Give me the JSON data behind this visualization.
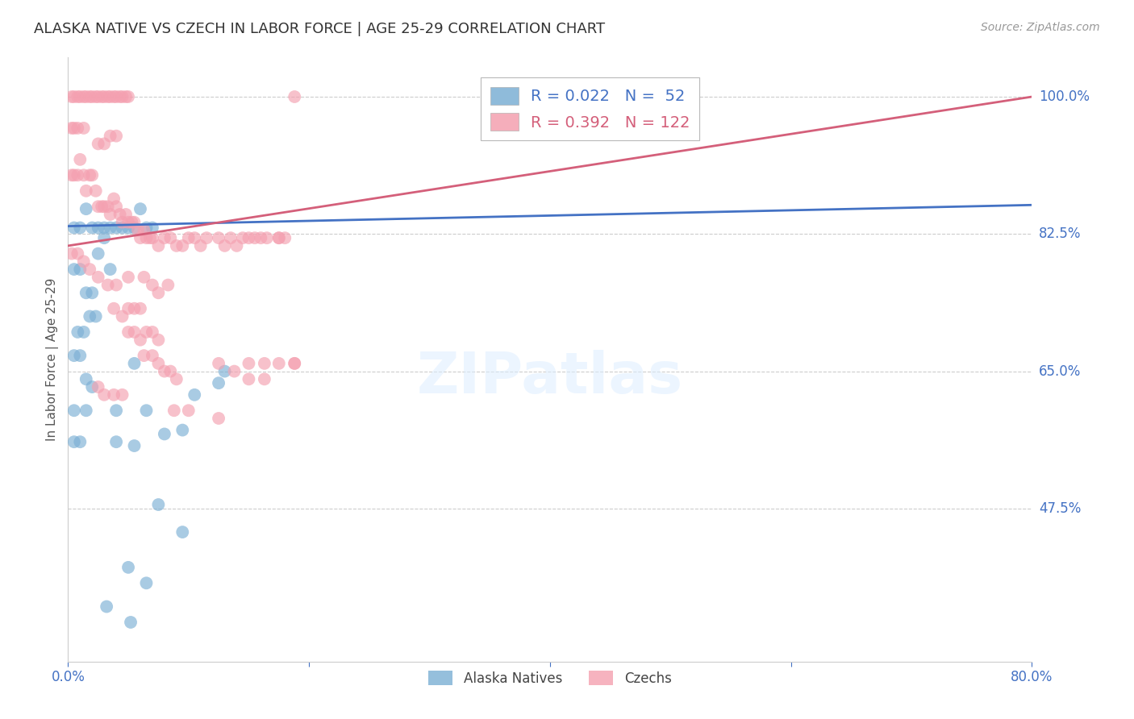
{
  "title": "ALASKA NATIVE VS CZECH IN LABOR FORCE | AGE 25-29 CORRELATION CHART",
  "source": "Source: ZipAtlas.com",
  "ylabel": "In Labor Force | Age 25-29",
  "legend_blue_r": "0.022",
  "legend_blue_n": "52",
  "legend_pink_r": "0.392",
  "legend_pink_n": "122",
  "legend_label_blue": "Alaska Natives",
  "legend_label_pink": "Czechs",
  "blue_color": "#7bafd4",
  "pink_color": "#f4a0b0",
  "blue_line_color": "#4472c4",
  "pink_line_color": "#d45f7a",
  "title_color": "#333333",
  "axis_label_color": "#4472c4",
  "background_color": "#ffffff",
  "blue_scatter": [
    [
      0.5,
      83.3
    ],
    [
      1.0,
      83.3
    ],
    [
      1.5,
      85.7
    ],
    [
      2.0,
      83.3
    ],
    [
      2.5,
      83.3
    ],
    [
      3.0,
      83.3
    ],
    [
      3.5,
      83.3
    ],
    [
      4.0,
      83.3
    ],
    [
      4.5,
      83.3
    ],
    [
      5.0,
      83.3
    ],
    [
      5.5,
      83.3
    ],
    [
      6.0,
      85.7
    ],
    [
      6.5,
      83.3
    ],
    [
      7.0,
      83.3
    ],
    [
      0.5,
      78.0
    ],
    [
      1.0,
      78.0
    ],
    [
      1.5,
      75.0
    ],
    [
      2.0,
      75.0
    ],
    [
      2.5,
      80.0
    ],
    [
      3.0,
      82.0
    ],
    [
      3.5,
      78.0
    ],
    [
      0.8,
      70.0
    ],
    [
      1.3,
      70.0
    ],
    [
      1.8,
      72.0
    ],
    [
      2.3,
      72.0
    ],
    [
      0.5,
      67.0
    ],
    [
      1.0,
      67.0
    ],
    [
      1.5,
      64.0
    ],
    [
      2.0,
      63.0
    ],
    [
      0.5,
      60.0
    ],
    [
      1.5,
      60.0
    ],
    [
      4.0,
      60.0
    ],
    [
      6.5,
      60.0
    ],
    [
      0.5,
      56.0
    ],
    [
      1.0,
      56.0
    ],
    [
      8.0,
      57.0
    ],
    [
      9.5,
      57.5
    ],
    [
      5.5,
      66.0
    ],
    [
      13.0,
      65.0
    ],
    [
      5.0,
      40.0
    ],
    [
      6.5,
      38.0
    ],
    [
      3.2,
      35.0
    ],
    [
      5.2,
      33.0
    ],
    [
      10.5,
      62.0
    ],
    [
      12.5,
      63.5
    ],
    [
      7.5,
      48.0
    ],
    [
      9.5,
      44.5
    ],
    [
      4.0,
      56.0
    ],
    [
      5.5,
      55.5
    ]
  ],
  "pink_scatter": [
    [
      0.3,
      90.0
    ],
    [
      0.5,
      90.0
    ],
    [
      0.8,
      90.0
    ],
    [
      1.0,
      92.0
    ],
    [
      1.3,
      90.0
    ],
    [
      1.5,
      88.0
    ],
    [
      1.8,
      90.0
    ],
    [
      2.0,
      90.0
    ],
    [
      2.3,
      88.0
    ],
    [
      2.5,
      86.0
    ],
    [
      2.8,
      86.0
    ],
    [
      3.0,
      86.0
    ],
    [
      3.3,
      86.0
    ],
    [
      3.5,
      85.0
    ],
    [
      3.8,
      87.0
    ],
    [
      4.0,
      86.0
    ],
    [
      4.3,
      85.0
    ],
    [
      4.5,
      84.0
    ],
    [
      4.8,
      85.0
    ],
    [
      5.0,
      84.0
    ],
    [
      5.3,
      84.0
    ],
    [
      5.5,
      84.0
    ],
    [
      5.8,
      83.0
    ],
    [
      6.0,
      82.0
    ],
    [
      6.3,
      83.0
    ],
    [
      6.5,
      82.0
    ],
    [
      6.8,
      82.0
    ],
    [
      7.0,
      82.0
    ],
    [
      7.5,
      81.0
    ],
    [
      8.0,
      82.0
    ],
    [
      8.5,
      82.0
    ],
    [
      9.0,
      81.0
    ],
    [
      9.5,
      81.0
    ],
    [
      10.0,
      82.0
    ],
    [
      10.5,
      82.0
    ],
    [
      11.0,
      81.0
    ],
    [
      11.5,
      82.0
    ],
    [
      12.5,
      82.0
    ],
    [
      13.0,
      81.0
    ],
    [
      13.5,
      82.0
    ],
    [
      14.0,
      81.0
    ],
    [
      14.5,
      82.0
    ],
    [
      15.0,
      82.0
    ],
    [
      15.5,
      82.0
    ],
    [
      16.0,
      82.0
    ],
    [
      16.5,
      82.0
    ],
    [
      17.5,
      82.0
    ],
    [
      18.0,
      82.0
    ],
    [
      0.3,
      100.0
    ],
    [
      0.5,
      100.0
    ],
    [
      0.8,
      100.0
    ],
    [
      1.0,
      100.0
    ],
    [
      1.3,
      100.0
    ],
    [
      1.5,
      100.0
    ],
    [
      1.8,
      100.0
    ],
    [
      2.0,
      100.0
    ],
    [
      2.3,
      100.0
    ],
    [
      2.5,
      100.0
    ],
    [
      2.8,
      100.0
    ],
    [
      3.0,
      100.0
    ],
    [
      3.3,
      100.0
    ],
    [
      3.5,
      100.0
    ],
    [
      3.8,
      100.0
    ],
    [
      4.0,
      100.0
    ],
    [
      4.3,
      100.0
    ],
    [
      4.5,
      100.0
    ],
    [
      4.8,
      100.0
    ],
    [
      5.0,
      100.0
    ],
    [
      0.3,
      96.0
    ],
    [
      0.5,
      96.0
    ],
    [
      0.8,
      96.0
    ],
    [
      1.3,
      96.0
    ],
    [
      2.5,
      94.0
    ],
    [
      3.0,
      94.0
    ],
    [
      3.5,
      95.0
    ],
    [
      4.0,
      95.0
    ],
    [
      0.3,
      80.0
    ],
    [
      0.8,
      80.0
    ],
    [
      1.3,
      79.0
    ],
    [
      1.8,
      78.0
    ],
    [
      2.5,
      77.0
    ],
    [
      3.3,
      76.0
    ],
    [
      4.0,
      76.0
    ],
    [
      5.0,
      77.0
    ],
    [
      6.3,
      77.0
    ],
    [
      7.0,
      76.0
    ],
    [
      7.5,
      75.0
    ],
    [
      8.3,
      76.0
    ],
    [
      3.8,
      73.0
    ],
    [
      4.5,
      72.0
    ],
    [
      5.0,
      70.0
    ],
    [
      5.5,
      70.0
    ],
    [
      6.0,
      69.0
    ],
    [
      6.5,
      70.0
    ],
    [
      7.0,
      70.0
    ],
    [
      7.5,
      69.0
    ],
    [
      6.3,
      67.0
    ],
    [
      7.0,
      67.0
    ],
    [
      7.5,
      66.0
    ],
    [
      8.0,
      65.0
    ],
    [
      8.5,
      65.0
    ],
    [
      5.0,
      73.0
    ],
    [
      5.5,
      73.0
    ],
    [
      6.0,
      73.0
    ],
    [
      9.0,
      64.0
    ],
    [
      2.5,
      63.0
    ],
    [
      3.0,
      62.0
    ],
    [
      3.8,
      62.0
    ],
    [
      4.5,
      62.0
    ],
    [
      8.8,
      60.0
    ],
    [
      10.0,
      60.0
    ],
    [
      15.0,
      64.0
    ],
    [
      12.5,
      59.0
    ],
    [
      13.8,
      65.0
    ],
    [
      16.3,
      66.0
    ],
    [
      17.5,
      66.0
    ],
    [
      18.8,
      66.0
    ],
    [
      12.5,
      66.0
    ],
    [
      18.8,
      66.0
    ],
    [
      15.0,
      66.0
    ],
    [
      16.3,
      64.0
    ],
    [
      17.5,
      82.0
    ],
    [
      18.8,
      100.0
    ]
  ],
  "xmin": 0.0,
  "xmax": 80.0,
  "ymin": 28.0,
  "ymax": 105.0,
  "blue_trend_x": [
    0.0,
    80.0
  ],
  "blue_trend_y": [
    83.5,
    86.2
  ],
  "pink_trend_x": [
    0.0,
    80.0
  ],
  "pink_trend_y": [
    81.0,
    100.0
  ]
}
